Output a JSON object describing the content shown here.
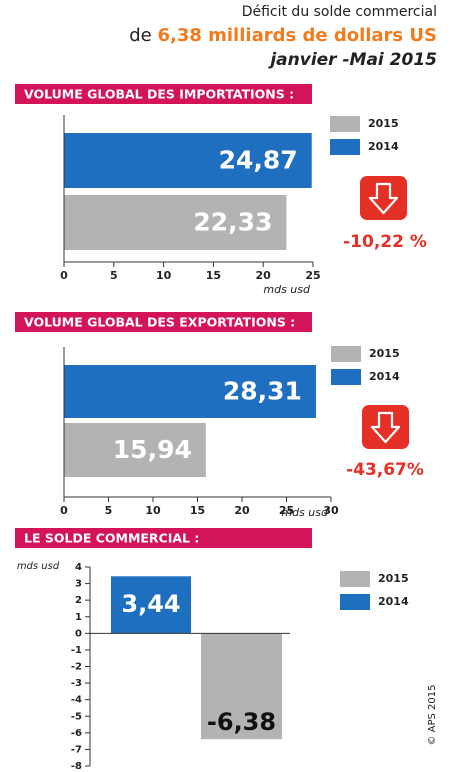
{
  "header": {
    "line1": "Déficit  du solde commercial",
    "line2_prefix": "de",
    "line2_highlight": "6,38 milliards de dollars US",
    "period": "janvier -Mai 2015"
  },
  "credit": "© APS 2015",
  "chart_data": [
    {
      "type": "hbar",
      "title": "VOLUME GLOBAL DES IMPORTATIONS :",
      "x_label": "mds usd",
      "series": [
        {
          "name": "2015",
          "color": "#b3b3b3",
          "label_color": "#ffffff",
          "values": [
            22.33
          ],
          "value_labels": [
            "22,33"
          ]
        },
        {
          "name": "2014",
          "color": "#1e6fc0",
          "label_color": "#ffffff",
          "values": [
            24.87
          ],
          "value_labels": [
            "24,87"
          ]
        }
      ],
      "xlim": [
        0,
        25
      ],
      "xticks": [
        0,
        5,
        10,
        15,
        20,
        25
      ],
      "annotation": "-10,22 %",
      "annotation_color": "#e53027"
    },
    {
      "type": "hbar",
      "title": "VOLUME GLOBAL  DES EXPORTATIONS :",
      "x_label": "mds usd",
      "series": [
        {
          "name": "2015",
          "color": "#b3b3b3",
          "label_color": "#ffffff",
          "values": [
            15.94
          ],
          "value_labels": [
            "15,94"
          ]
        },
        {
          "name": "2014",
          "color": "#1e6fc0",
          "label_color": "#ffffff",
          "values": [
            28.31
          ],
          "value_labels": [
            "28,31"
          ]
        }
      ],
      "xlim": [
        0,
        30
      ],
      "xticks": [
        0,
        5,
        10,
        15,
        20,
        25,
        30
      ],
      "annotation": "-43,67%",
      "annotation_color": "#e53027"
    },
    {
      "type": "vbar",
      "title": "LE  SOLDE COMMERCIAL :",
      "y_label": "mds usd",
      "legend_reverse": true,
      "series": [
        {
          "name": "2014",
          "color": "#1e6fc0",
          "label_color": "#ffffff",
          "values": [
            3.44
          ],
          "value_labels": [
            "3,44"
          ]
        },
        {
          "name": "2015",
          "color": "#b3b3b3",
          "label_color": "#111111",
          "values": [
            -6.38
          ],
          "value_labels": [
            "-6,38"
          ]
        }
      ],
      "ylim": [
        -8,
        4
      ],
      "yticks": [
        -8,
        -7,
        -6,
        -5,
        -4,
        -3,
        -2,
        -1,
        0,
        1,
        2,
        3,
        4
      ]
    }
  ]
}
